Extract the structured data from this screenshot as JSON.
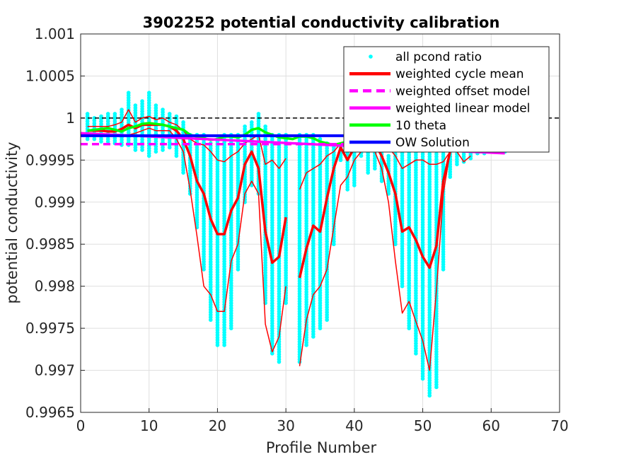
{
  "chart_data": {
    "type": "line",
    "title": "3902252 potential conductivity calibration",
    "xlabel": "Profile Number",
    "ylabel": "potential conductivity",
    "xlim": [
      0,
      70
    ],
    "ylim": [
      0.9965,
      1.001
    ],
    "xticks": [
      0,
      10,
      20,
      30,
      40,
      50,
      60,
      70
    ],
    "xtick_labels": [
      "0",
      "10",
      "20",
      "30",
      "40",
      "50",
      "60",
      "70"
    ],
    "yticks": [
      0.9965,
      0.997,
      0.9975,
      0.998,
      0.9985,
      0.999,
      0.9995,
      1,
      1.0005,
      1.001
    ],
    "ytick_labels": [
      "0.9965",
      "0.997",
      "0.9975",
      "0.998",
      "0.9985",
      "0.999",
      "0.9995",
      "1",
      "1.0005",
      "1.001"
    ],
    "grid": true,
    "legend_position": "top-right",
    "legend": [
      {
        "label": "all pcond ratio",
        "color": "#00ffff",
        "style": "dots"
      },
      {
        "label": "weighted cycle mean",
        "color": "#ff0000",
        "style": "solid"
      },
      {
        "label": "weighted offset model",
        "color": "#ff00ff",
        "style": "dashed"
      },
      {
        "label": "weighted linear model",
        "color": "#ff00ff",
        "style": "solid"
      },
      {
        "label": "10 theta",
        "color": "#00ff00",
        "style": "solid"
      },
      {
        "label": "OW Solution",
        "color": "#0000ff",
        "style": "solid"
      }
    ],
    "scatter_ranges": {
      "name": "all pcond ratio",
      "x": [
        1,
        2,
        3,
        4,
        5,
        6,
        7,
        8,
        9,
        10,
        11,
        12,
        13,
        14,
        15,
        16,
        17,
        18,
        19,
        20,
        21,
        22,
        23,
        24,
        25,
        26,
        27,
        28,
        29,
        30,
        32,
        33,
        34,
        35,
        36,
        37,
        38,
        39,
        40,
        41,
        42,
        43,
        44,
        45,
        46,
        47,
        48,
        49,
        50,
        51,
        52,
        53,
        54,
        55,
        56,
        57,
        58,
        59,
        60,
        61,
        62
      ],
      "ymin": [
        0.99975,
        0.99975,
        0.99972,
        0.99972,
        0.9997,
        0.99968,
        0.99968,
        0.99962,
        0.99962,
        0.99955,
        0.9996,
        0.99962,
        0.99965,
        0.99955,
        0.99935,
        0.9991,
        0.9987,
        0.9982,
        0.9976,
        0.9973,
        0.9973,
        0.9975,
        0.9982,
        0.999,
        0.9992,
        0.9991,
        0.9978,
        0.9972,
        0.9971,
        0.9978,
        0.9971,
        0.9973,
        0.9974,
        0.9975,
        0.9976,
        0.9985,
        0.9995,
        0.99915,
        0.9992,
        0.99955,
        0.99935,
        0.9994,
        0.99925,
        0.9991,
        0.9985,
        0.998,
        0.9975,
        0.9972,
        0.9969,
        0.9967,
        0.9968,
        0.9982,
        0.9993,
        0.99945,
        0.99948,
        0.99952,
        0.99958,
        0.99958,
        0.9996,
        0.9996,
        0.9996
      ],
      "ymax": [
        1.00005,
        1.0,
        1.00002,
        1.00005,
        1.00005,
        1.0001,
        1.0003,
        1.00015,
        1.0002,
        1.0003,
        1.00015,
        1.0001,
        1.00005,
        1.00002,
        0.99995,
        0.9998,
        0.9998,
        0.9998,
        0.9997,
        0.99975,
        0.9998,
        0.9998,
        0.9998,
        0.9999,
        0.99995,
        1.00005,
        0.9999,
        0.9998,
        0.9998,
        0.9998,
        0.9998,
        0.9998,
        0.9998,
        0.99975,
        0.9997,
        0.99965,
        0.99965,
        0.99965,
        0.9997,
        0.99965,
        0.9997,
        0.9997,
        0.9996,
        0.99955,
        0.9996,
        0.9997,
        0.9998,
        0.99965,
        0.9996,
        0.9996,
        0.9996,
        0.9996,
        0.9996,
        0.9996,
        0.9996,
        0.9996,
        0.9996,
        0.9996,
        0.9996,
        0.9996,
        0.9996
      ]
    },
    "series": [
      {
        "name": "weighted cycle mean",
        "color": "#ff0000",
        "width": 3.5,
        "segments": [
          {
            "x": [
              1,
              2,
              3,
              4,
              5,
              6,
              7,
              8,
              9,
              10,
              11,
              12,
              13,
              14,
              15,
              16,
              17,
              18,
              19,
              20,
              21,
              22,
              23,
              24,
              25,
              26,
              27,
              28,
              29,
              30
            ],
            "y": [
              0.99985,
              0.99985,
              0.99985,
              0.99984,
              0.99984,
              0.99987,
              0.99992,
              0.99988,
              0.99992,
              0.99992,
              0.99992,
              0.99992,
              0.9999,
              0.99985,
              0.99975,
              0.99955,
              0.99925,
              0.9991,
              0.9988,
              0.99862,
              0.99862,
              0.9989,
              0.99905,
              0.99945,
              0.9996,
              0.9994,
              0.99865,
              0.99828,
              0.99835,
              0.99882
            ]
          },
          {
            "x": [
              32,
              33,
              34,
              35,
              36,
              37,
              38,
              39,
              40,
              41,
              42,
              43,
              44,
              45,
              46,
              47,
              48,
              49,
              50,
              51,
              52,
              53,
              54,
              55
            ],
            "y": [
              0.9981,
              0.99845,
              0.99872,
              0.99865,
              0.99905,
              0.9994,
              0.99965,
              0.9995,
              0.99965,
              0.99975,
              0.99975,
              0.9997,
              0.99955,
              0.99935,
              0.9991,
              0.99865,
              0.9987,
              0.99855,
              0.99835,
              0.99822,
              0.99848,
              0.99925,
              0.9996,
              0.99965
            ]
          }
        ]
      },
      {
        "name": "weighted cycle mean upper",
        "color": "#ff0000",
        "width": 1.5,
        "segments": [
          {
            "x": [
              1,
              2,
              3,
              4,
              5,
              6,
              7,
              8,
              9,
              10,
              11,
              12,
              13,
              14,
              15,
              16,
              17,
              18,
              19,
              20,
              21,
              22,
              23,
              24,
              25,
              26,
              27,
              28,
              29,
              30
            ],
            "y": [
              0.9999,
              0.9999,
              0.9999,
              0.9999,
              0.99992,
              0.99995,
              1.0001,
              0.99995,
              1.0,
              1.00002,
              0.99998,
              1.0,
              0.99995,
              0.99992,
              0.99985,
              0.99975,
              0.9997,
              0.99968,
              0.9996,
              0.9995,
              0.99948,
              0.99955,
              0.9996,
              0.9997,
              0.99975,
              0.9998,
              0.99945,
              0.9995,
              0.9994,
              0.99952
            ]
          },
          {
            "x": [
              32,
              33,
              34,
              35,
              36,
              37,
              38,
              39,
              40,
              41,
              42,
              43,
              44,
              45,
              46,
              47,
              48,
              49,
              50,
              51,
              52,
              53,
              54,
              55,
              56,
              57
            ],
            "y": [
              0.99915,
              0.99935,
              0.9994,
              0.99945,
              0.99955,
              0.9996,
              0.9997,
              0.9997,
              0.9997,
              0.9998,
              0.9998,
              0.9998,
              0.9997,
              0.99965,
              0.99955,
              0.9994,
              0.99945,
              0.9995,
              0.9995,
              0.99945,
              0.99945,
              0.99948,
              0.9996,
              0.9996,
              0.99948,
              0.99955
            ]
          }
        ]
      },
      {
        "name": "weighted cycle mean lower",
        "color": "#ff0000",
        "width": 1.5,
        "segments": [
          {
            "x": [
              1,
              2,
              3,
              4,
              5,
              6,
              7,
              8,
              9,
              10,
              11,
              12,
              13,
              14,
              15,
              16,
              17,
              18,
              19,
              20,
              21,
              22,
              23,
              24,
              25,
              26,
              27,
              28,
              29,
              30
            ],
            "y": [
              0.9998,
              0.9998,
              0.9998,
              0.9998,
              0.9998,
              0.9998,
              0.9998,
              0.99982,
              0.99985,
              0.99988,
              0.99985,
              0.99985,
              0.99985,
              0.99975,
              0.9996,
              0.99915,
              0.9986,
              0.998,
              0.9979,
              0.9977,
              0.9977,
              0.9983,
              0.9985,
              0.9991,
              0.99925,
              0.9991,
              0.99755,
              0.99722,
              0.9974,
              0.998
            ]
          },
          {
            "x": [
              32,
              33,
              34,
              35,
              36,
              37,
              38,
              39,
              40,
              41,
              42,
              43,
              44,
              45,
              46,
              47,
              48,
              49,
              50,
              51,
              52,
              53,
              54
            ],
            "y": [
              0.99705,
              0.9976,
              0.9979,
              0.998,
              0.9982,
              0.9987,
              0.9992,
              0.9993,
              0.9995,
              0.9996,
              0.99965,
              0.9996,
              0.9994,
              0.999,
              0.9983,
              0.99768,
              0.99782,
              0.99758,
              0.99735,
              0.997,
              0.99795,
              0.9991,
              0.9996
            ]
          }
        ]
      },
      {
        "name": "10 theta",
        "color": "#00ff00",
        "width": 3.5,
        "segments": [
          {
            "x": [
              1,
              2,
              3,
              4,
              5,
              6,
              7,
              8,
              9,
              10,
              11,
              12,
              13,
              14,
              15,
              16,
              17,
              18,
              19,
              20,
              21,
              22,
              23,
              24,
              25,
              26,
              27,
              28,
              29,
              30,
              31,
              32,
              33,
              34,
              35,
              36,
              37,
              38,
              39,
              40,
              41,
              42,
              43,
              44,
              45,
              46,
              47,
              48,
              49,
              50,
              51,
              52,
              53,
              54,
              55,
              56,
              57,
              58,
              59,
              60,
              61,
              62
            ],
            "y": [
              0.99985,
              0.99986,
              0.99987,
              0.99988,
              0.99986,
              0.99984,
              0.99988,
              0.9999,
              0.99993,
              0.99994,
              0.99993,
              0.99992,
              0.9999,
              0.99988,
              0.99986,
              0.9998,
              0.99978,
              0.99976,
              0.99974,
              0.99975,
              0.99978,
              0.99978,
              0.99977,
              0.9998,
              0.99986,
              0.99988,
              0.99983,
              0.9998,
              0.99977,
              0.99976,
              0.99975,
              0.99978,
              0.99978,
              0.99976,
              0.99972,
              0.9997,
              0.99968,
              0.9997,
              0.99972,
              0.99973,
              0.99975,
              0.99978,
              0.99978,
              0.99978,
              0.99978,
              0.99978,
              0.99978,
              0.99978,
              0.99978,
              0.99978,
              0.99978,
              0.99978,
              0.99978,
              0.99978,
              0.99978,
              0.99978,
              0.99978,
              0.99978,
              0.99978,
              0.99978,
              0.99978,
              0.99978
            ]
          }
        ]
      },
      {
        "name": "weighted linear model",
        "color": "#ff00ff",
        "width": 3.5,
        "segments": [
          {
            "x": [
              0,
              62
            ],
            "y": [
              0.99982,
              0.99958
            ]
          }
        ]
      },
      {
        "name": "weighted offset model",
        "color": "#ff00ff",
        "width": 3.5,
        "dash": "10,6",
        "segments": [
          {
            "x": [
              0,
              62
            ],
            "y": [
              0.99969,
              0.99969
            ]
          }
        ]
      },
      {
        "name": "OW Solution",
        "color": "#0000ff",
        "width": 4,
        "segments": [
          {
            "x": [
              0,
              62
            ],
            "y": [
              0.99979,
              0.99979
            ]
          }
        ]
      }
    ],
    "reference_line": {
      "y": 1,
      "x": [
        0,
        70
      ],
      "color": "#000000",
      "style": "dashed"
    }
  }
}
